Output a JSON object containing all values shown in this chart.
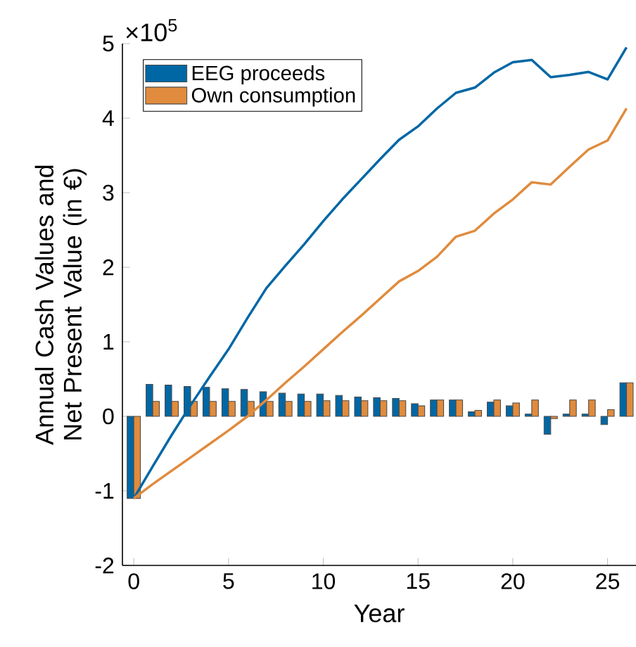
{
  "chart_data": {
    "type": "bar",
    "xlabel": "Year",
    "ylabel": "Annual Cash Values and Net Present Value (in €)",
    "annotations": [
      "×10$^{5}$"
    ],
    "x": [
      0,
      1,
      2,
      3,
      4,
      5,
      6,
      7,
      8,
      9,
      10,
      11,
      12,
      13,
      14,
      15,
      16,
      17,
      18,
      19,
      20,
      21,
      22,
      23,
      24,
      25,
      26
    ],
    "series": [
      {
        "name": "EEG proceeds",
        "color": "#0067a5",
        "values": [
          -1.1,
          0.43,
          0.42,
          0.4,
          0.39,
          0.37,
          0.36,
          0.33,
          0.31,
          0.3,
          0.3,
          0.28,
          0.26,
          0.25,
          0.24,
          0.17,
          0.22,
          0.22,
          0.06,
          0.19,
          0.14,
          0.03,
          -0.24,
          0.03,
          0.03,
          -0.11,
          0.45
        ]
      },
      {
        "name": "Own consumption",
        "color": "#e08b3d",
        "values": [
          -1.1,
          0.2,
          0.2,
          0.2,
          0.2,
          0.2,
          0.2,
          0.2,
          0.2,
          0.2,
          0.21,
          0.21,
          0.21,
          0.21,
          0.21,
          0.14,
          0.22,
          0.22,
          0.08,
          0.22,
          0.18,
          0.22,
          -0.03,
          0.22,
          0.22,
          0.09,
          0.45
        ]
      },
      {
        "type": "line",
        "color": "#0067a5",
        "values": [
          -1.1,
          -0.67,
          -0.25,
          0.15,
          0.53,
          0.9,
          1.32,
          1.72,
          2.02,
          2.31,
          2.62,
          2.91,
          3.18,
          3.45,
          3.71,
          3.89,
          4.13,
          4.34,
          4.41,
          4.61,
          4.75,
          4.78,
          4.55,
          4.58,
          4.62,
          4.52,
          4.95
        ]
      },
      {
        "type": "line",
        "color": "#e08b3d",
        "values": [
          -1.1,
          -0.91,
          -0.73,
          -0.55,
          -0.37,
          -0.19,
          0.0,
          0.22,
          0.45,
          0.67,
          0.9,
          1.13,
          1.35,
          1.58,
          1.81,
          1.95,
          2.14,
          2.41,
          2.49,
          2.72,
          2.91,
          3.14,
          3.11,
          3.35,
          3.58,
          3.7,
          4.13
        ]
      }
    ],
    "xlim": [
      -0.6,
      26.5
    ],
    "ylim": [
      -2,
      5
    ],
    "xticks": [
      0,
      5,
      10,
      15,
      20,
      25
    ],
    "yticks": [
      -2,
      -1,
      0,
      1,
      2,
      3,
      4,
      5
    ],
    "grid": false,
    "legend": "top left",
    "marker": "none",
    "line_style": "solid"
  }
}
